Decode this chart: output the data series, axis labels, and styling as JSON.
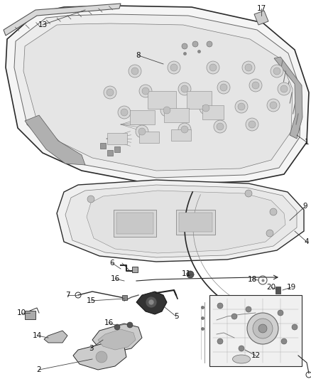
{
  "bg_color": "#ffffff",
  "line_color": "#2a2a2a",
  "fig_width": 4.38,
  "fig_height": 5.33,
  "dpi": 100,
  "font_size": 7.5,
  "callout_line_color": "#444444",
  "callout_linewidth": 0.6,
  "hood_facecolor": "#f2f2f2",
  "hood_inner_color": "#e0e0e0",
  "insulator_facecolor": "#ebebeb",
  "dark_color": "#1a1a1a",
  "mid_color": "#888888",
  "light_color": "#cccccc"
}
